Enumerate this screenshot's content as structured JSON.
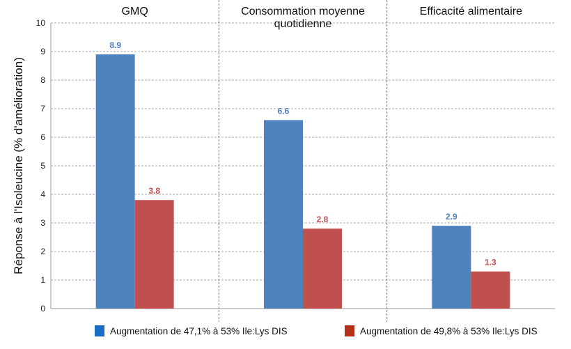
{
  "chart_data": {
    "type": "bar",
    "categories": [
      "GMQ",
      "Consommation moyenne quotidienne",
      "Efficacité alimentaire"
    ],
    "category_lines": [
      [
        "GMQ"
      ],
      [
        "Consommation moyenne",
        "quotidienne"
      ],
      [
        "Efficacité alimentaire"
      ]
    ],
    "series": [
      {
        "name": "Augmentation de 47,1% à 53% Ile:Lys DIS",
        "values": [
          8.9,
          6.6,
          2.9
        ],
        "color": "#4f81bd",
        "legend_color": "#1a6ec6",
        "label_color": "#4f81bd"
      },
      {
        "name": "Augmentation de 49,8% à 53% Ile:Lys DIS",
        "values": [
          3.8,
          2.8,
          1.3
        ],
        "color": "#c0504d",
        "legend_color": "#b3301a",
        "label_color": "#c0504d"
      }
    ],
    "ylabel": "Réponse à l'Isoleucine (% d'amélioration)",
    "xlabel": "",
    "ylim": [
      0,
      10
    ],
    "yticks": [
      "0",
      "1",
      "2",
      "3",
      "4",
      "5",
      "6",
      "7",
      "8",
      "9",
      "10"
    ],
    "grid": true,
    "legend_position": "bottom"
  }
}
